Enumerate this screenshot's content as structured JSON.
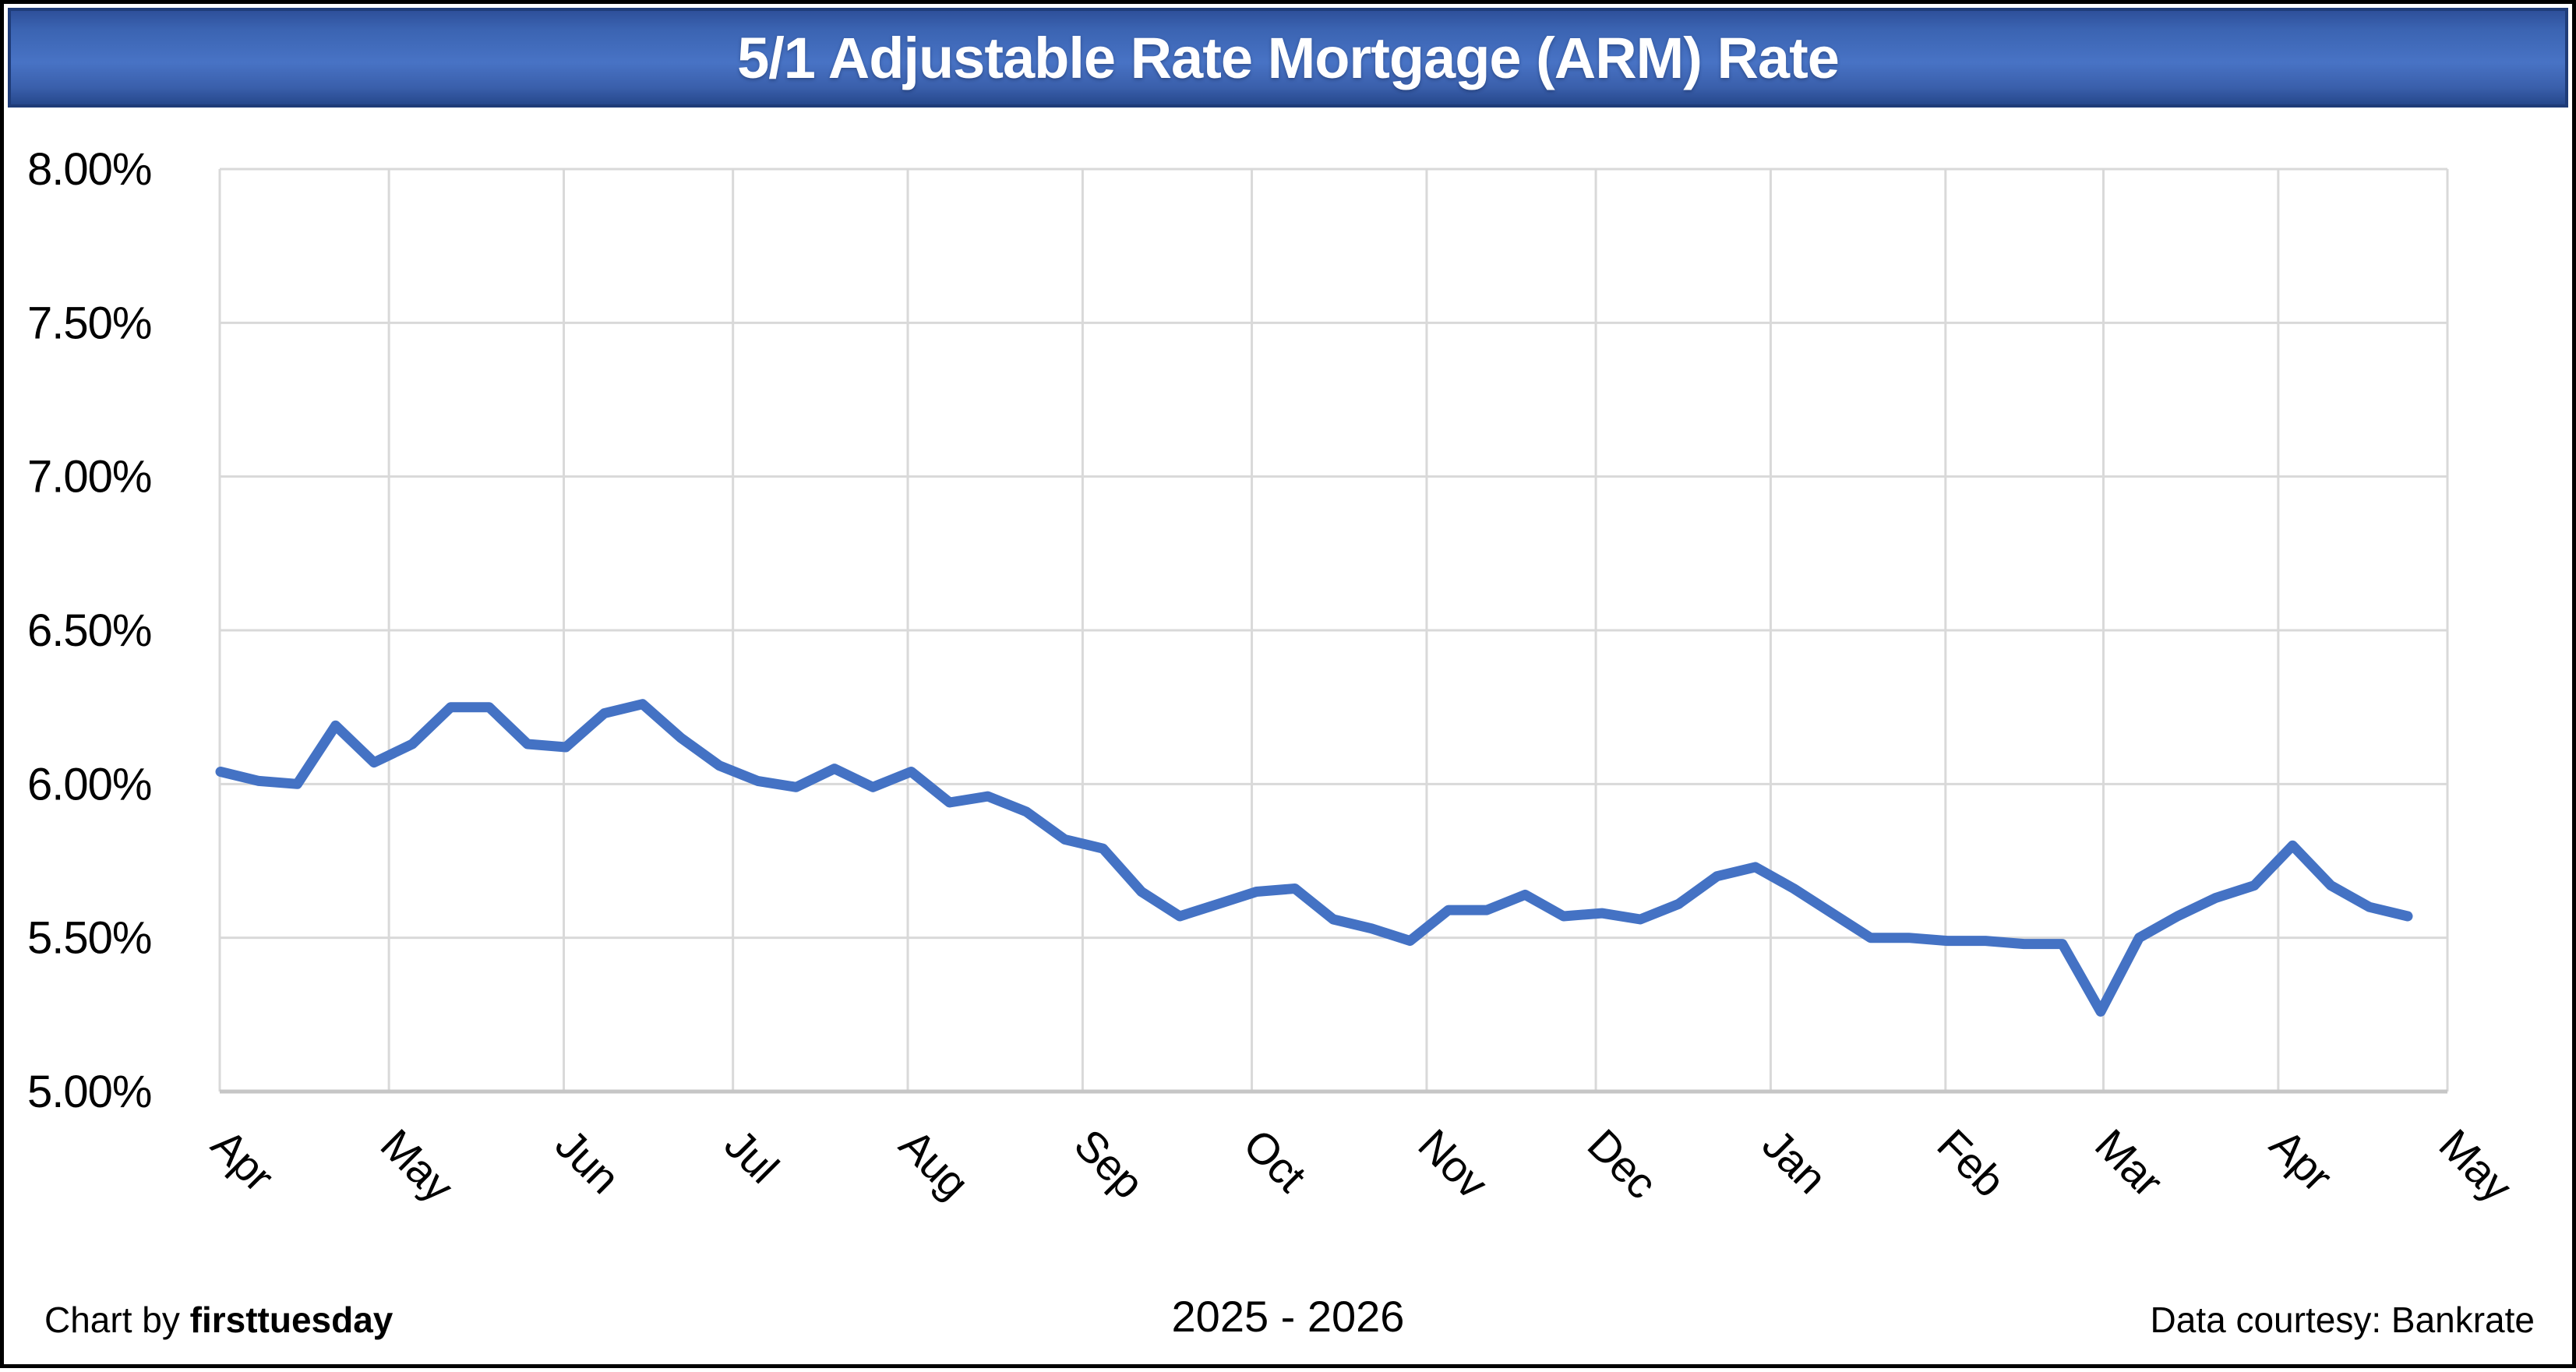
{
  "title": "5/1 Adjustable Rate Mortgage (ARM) Rate",
  "footer": {
    "left_prefix": "Chart by ",
    "left_brand": "firsttuesday",
    "center": "2025 - 2026",
    "right": "Data courtesy: Bankrate"
  },
  "colors": {
    "line": "#4472C4",
    "gridline": "#D9D9D9",
    "axis_line": "#C6C6C6",
    "plot_border": "#D9D9D9",
    "title_text": "#FFFFFF",
    "titlebar_border": "#1F3C78",
    "titlebar_fill_mid": "#4873C5",
    "page_border": "#000000",
    "label_text": "#000000"
  },
  "chart_data": {
    "type": "line",
    "title": "5/1 Adjustable Rate Mortgage (ARM) Rate",
    "subtitle_period": "2025 - 2026",
    "grid": true,
    "legend": "none",
    "x_axis": {
      "tick_labels": [
        "Apr",
        "May",
        "Jun",
        "Jul",
        "Aug",
        "Sep",
        "Oct",
        "Nov",
        "Dec",
        "Jan",
        "Feb",
        "Mar",
        "Apr",
        "May"
      ],
      "tick_label_rotation_deg": 45,
      "month_day_offsets": [
        0,
        30,
        61,
        91,
        122,
        153,
        183,
        214,
        244,
        275,
        306,
        334,
        365,
        395
      ],
      "axis_total_days": 395,
      "span": "April 2025 through May 2026"
    },
    "y_axis": {
      "unit": "percent",
      "min": 5.0,
      "max": 8.0,
      "step": 0.5,
      "tick_values": [
        8.0,
        7.5,
        7.0,
        6.5,
        6.0,
        5.5,
        5.0
      ],
      "tick_labels": [
        "8.00%",
        "7.50%",
        "7.00%",
        "6.50%",
        "6.00%",
        "5.50%",
        "5.00%"
      ]
    },
    "series": [
      {
        "name": "5/1 ARM rate",
        "color": "#4472C4",
        "frequency": "weekly",
        "values": [
          6.04,
          6.01,
          6.0,
          6.19,
          6.07,
          6.13,
          6.25,
          6.25,
          6.13,
          6.12,
          6.23,
          6.26,
          6.15,
          6.06,
          6.01,
          5.99,
          6.05,
          5.99,
          6.04,
          5.94,
          5.96,
          5.91,
          5.82,
          5.79,
          5.65,
          5.57,
          5.61,
          5.65,
          5.66,
          5.56,
          5.53,
          5.49,
          5.59,
          5.59,
          5.64,
          5.57,
          5.58,
          5.56,
          5.61,
          5.7,
          5.73,
          5.66,
          5.58,
          5.5,
          5.5,
          5.49,
          5.49,
          5.48,
          5.48,
          5.26,
          5.5,
          5.57,
          5.63,
          5.67,
          5.8,
          5.67,
          5.6,
          5.57
        ]
      }
    ]
  }
}
